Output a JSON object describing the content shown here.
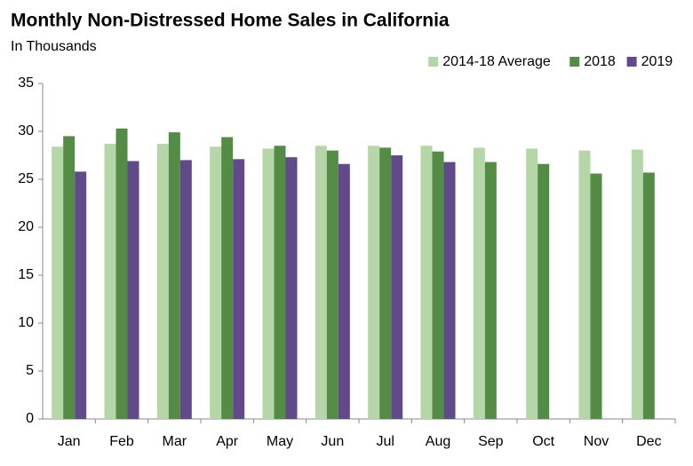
{
  "chart_data": {
    "type": "bar",
    "title": "Monthly Non-Distressed Home Sales in California",
    "subtitle": "In Thousands",
    "categories": [
      "Jan",
      "Feb",
      "Mar",
      "Apr",
      "May",
      "Jun",
      "Jul",
      "Aug",
      "Sep",
      "Oct",
      "Nov",
      "Dec"
    ],
    "series": [
      {
        "name": "2014-18 Average",
        "color": "#b5d6a7",
        "values": [
          28.4,
          28.7,
          28.7,
          28.4,
          28.2,
          28.5,
          28.5,
          28.5,
          28.3,
          28.2,
          28.0,
          28.1
        ]
      },
      {
        "name": "2018",
        "color": "#548b45",
        "values": [
          29.5,
          30.3,
          29.9,
          29.4,
          28.5,
          28.0,
          28.3,
          27.9,
          26.8,
          26.6,
          25.6,
          25.7
        ]
      },
      {
        "name": "2019",
        "color": "#614a8a",
        "values": [
          25.8,
          26.9,
          27.0,
          27.1,
          27.3,
          26.6,
          27.5,
          26.8,
          null,
          null,
          null,
          null
        ]
      }
    ],
    "ylim": [
      0,
      35
    ],
    "yticks": [
      0,
      5,
      10,
      15,
      20,
      25,
      30,
      35
    ],
    "grid": false,
    "legend": "top-right"
  }
}
